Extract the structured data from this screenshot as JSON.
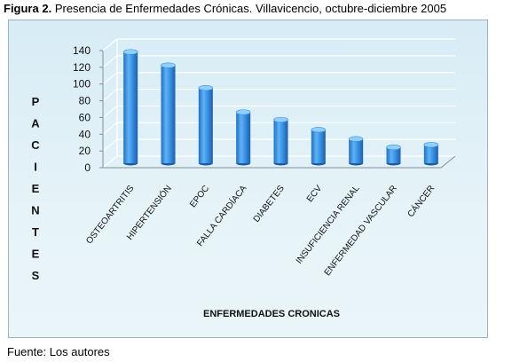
{
  "figure": {
    "label": "Figura 2.",
    "caption": "Presencia de Enfermedades Crónicas. Villavicencio, octubre-diciembre 2005",
    "source": "Fuente: Los autores"
  },
  "chart_data": {
    "type": "bar",
    "title": "",
    "xlabel": "ENFERMEDADES CRONICAS",
    "ylabel": "PACIENTES",
    "ylim": [
      0,
      140
    ],
    "yticks": [
      0,
      20,
      40,
      60,
      80,
      100,
      120,
      140
    ],
    "grid": true,
    "categories": [
      "OSTEOARTRITIS",
      "HIPERTENSIÓN",
      "EPOC",
      "FALLA CARDÍACA",
      "DIABETES",
      "ECV",
      "INSUFICIENCIA RENAL",
      "ENFERMEDAD VASCULAR",
      "CÁNCER"
    ],
    "values": [
      132,
      116,
      89,
      60,
      51,
      39,
      28,
      18,
      21
    ],
    "bar_color": "#2f8de4"
  }
}
